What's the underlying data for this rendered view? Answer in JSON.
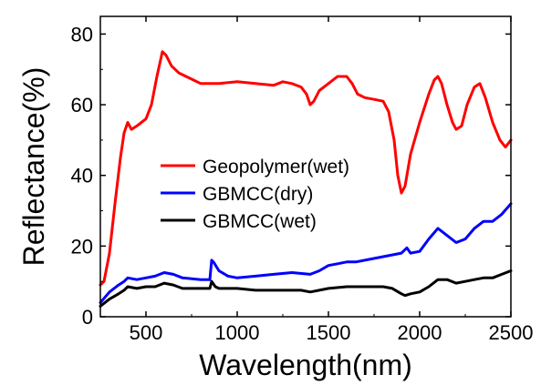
{
  "chart_data": {
    "type": "line",
    "title": "",
    "xlabel": "Wavelength(nm)",
    "ylabel": "Reflectance(%)",
    "xlim": [
      250,
      2500
    ],
    "ylim": [
      0,
      85
    ],
    "xticks": [
      500,
      1000,
      1500,
      2000,
      2500
    ],
    "yticks": [
      0,
      20,
      40,
      60,
      80
    ],
    "grid": false,
    "legend_position": "center-left",
    "series": [
      {
        "name": "Geopolymer(wet)",
        "color": "#ff0000",
        "x": [
          250,
          270,
          300,
          330,
          360,
          380,
          400,
          420,
          450,
          500,
          530,
          560,
          590,
          610,
          640,
          680,
          720,
          760,
          800,
          850,
          900,
          1000,
          1100,
          1200,
          1250,
          1300,
          1350,
          1380,
          1400,
          1420,
          1450,
          1500,
          1550,
          1600,
          1630,
          1660,
          1700,
          1750,
          1800,
          1830,
          1860,
          1880,
          1900,
          1920,
          1950,
          2000,
          2050,
          2080,
          2100,
          2120,
          2150,
          2180,
          2200,
          2230,
          2260,
          2300,
          2330,
          2360,
          2400,
          2440,
          2470,
          2500
        ],
        "y": [
          9,
          10,
          18,
          32,
          45,
          52,
          55,
          53,
          54,
          56,
          60,
          68,
          75,
          74,
          71,
          69,
          68,
          67,
          66,
          66,
          66,
          66.5,
          66,
          65.5,
          66.5,
          66,
          65,
          63,
          60,
          61,
          64,
          66,
          68,
          68,
          66,
          63,
          62,
          61.5,
          61,
          58,
          50,
          40,
          35,
          37,
          46,
          55,
          63,
          67,
          68,
          66,
          60,
          55,
          53,
          54,
          60,
          65,
          66,
          62,
          55,
          50,
          48,
          50
        ]
      },
      {
        "name": "GBMCC(dry)",
        "color": "#0000ff",
        "x": [
          250,
          300,
          350,
          380,
          400,
          450,
          500,
          550,
          600,
          650,
          700,
          800,
          850,
          860,
          870,
          900,
          950,
          1000,
          1100,
          1200,
          1300,
          1400,
          1450,
          1500,
          1550,
          1600,
          1650,
          1700,
          1800,
          1900,
          1930,
          1950,
          2000,
          2050,
          2100,
          2150,
          2200,
          2250,
          2300,
          2350,
          2400,
          2450,
          2500
        ],
        "y": [
          4,
          7,
          9,
          10,
          11,
          10.5,
          11,
          11.5,
          12.5,
          12,
          11,
          10.5,
          10.5,
          16,
          15.5,
          13,
          11.5,
          11,
          11.5,
          12,
          12.5,
          12,
          13,
          14.5,
          15,
          15.5,
          15.5,
          16,
          17,
          18,
          19.5,
          18,
          18.5,
          22,
          25,
          23,
          21,
          22,
          25,
          27,
          27,
          29,
          32
        ]
      },
      {
        "name": "GBMCC(wet)",
        "color": "#000000",
        "x": [
          250,
          300,
          350,
          380,
          400,
          450,
          500,
          550,
          600,
          650,
          700,
          800,
          850,
          860,
          880,
          900,
          1000,
          1100,
          1200,
          1300,
          1350,
          1400,
          1450,
          1500,
          1600,
          1700,
          1800,
          1850,
          1900,
          1920,
          1950,
          2000,
          2050,
          2100,
          2150,
          2200,
          2250,
          2300,
          2350,
          2400,
          2450,
          2500
        ],
        "y": [
          3,
          5,
          6.5,
          7.5,
          8.5,
          8,
          8.5,
          8.5,
          9.5,
          9,
          8,
          8,
          8,
          10,
          8.5,
          8,
          8,
          7.5,
          7.5,
          7.5,
          7.5,
          7,
          7.5,
          8,
          8.5,
          8.5,
          8.5,
          8,
          6.5,
          6,
          6.5,
          7,
          8.5,
          10.5,
          10.5,
          9.5,
          10,
          10.5,
          11,
          11,
          12,
          13
        ]
      }
    ]
  }
}
